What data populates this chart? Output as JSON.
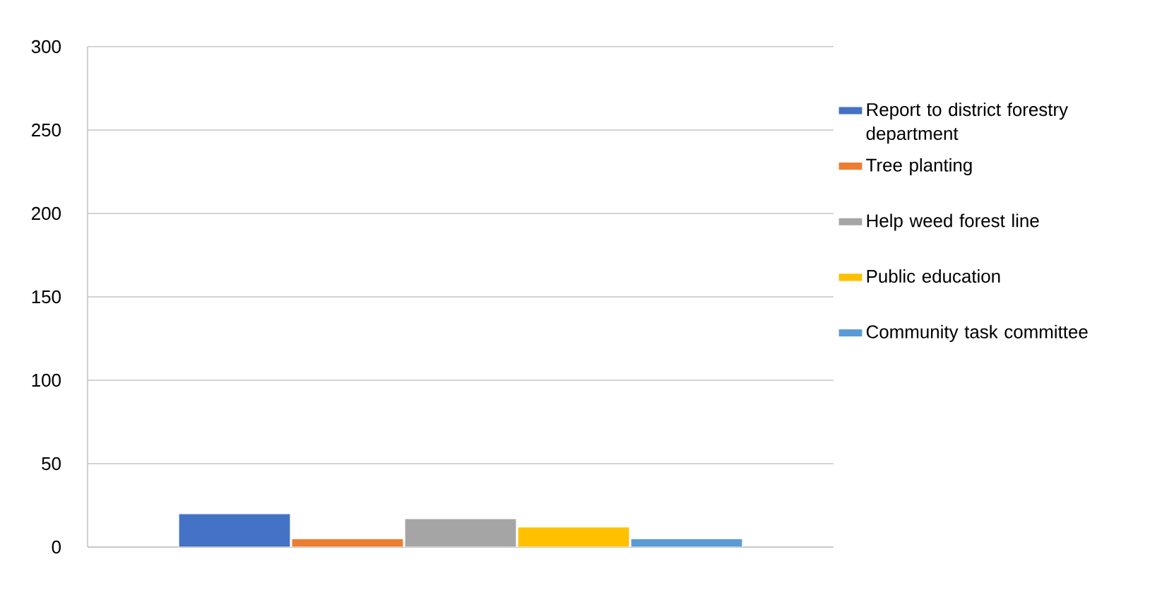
{
  "chart_data": {
    "type": "bar",
    "categories": [
      null
    ],
    "series": [
      {
        "name": "Report to district forestry department",
        "color": "#4472c4",
        "values": [
          20
        ]
      },
      {
        "name": "Tree planting",
        "color": "#ed7d31",
        "values": [
          5
        ]
      },
      {
        "name": "Help weed forest line",
        "color": "#a5a5a5",
        "values": [
          17
        ]
      },
      {
        "name": "Public education",
        "color": "#ffc000",
        "values": [
          12
        ]
      },
      {
        "name": "Community task committee",
        "color": "#5b9bd5",
        "values": [
          5
        ]
      }
    ],
    "ylim": [
      0,
      300
    ],
    "yticks": [
      0,
      50,
      100,
      150,
      200,
      250,
      300
    ],
    "grid": "y",
    "legend": "right"
  }
}
